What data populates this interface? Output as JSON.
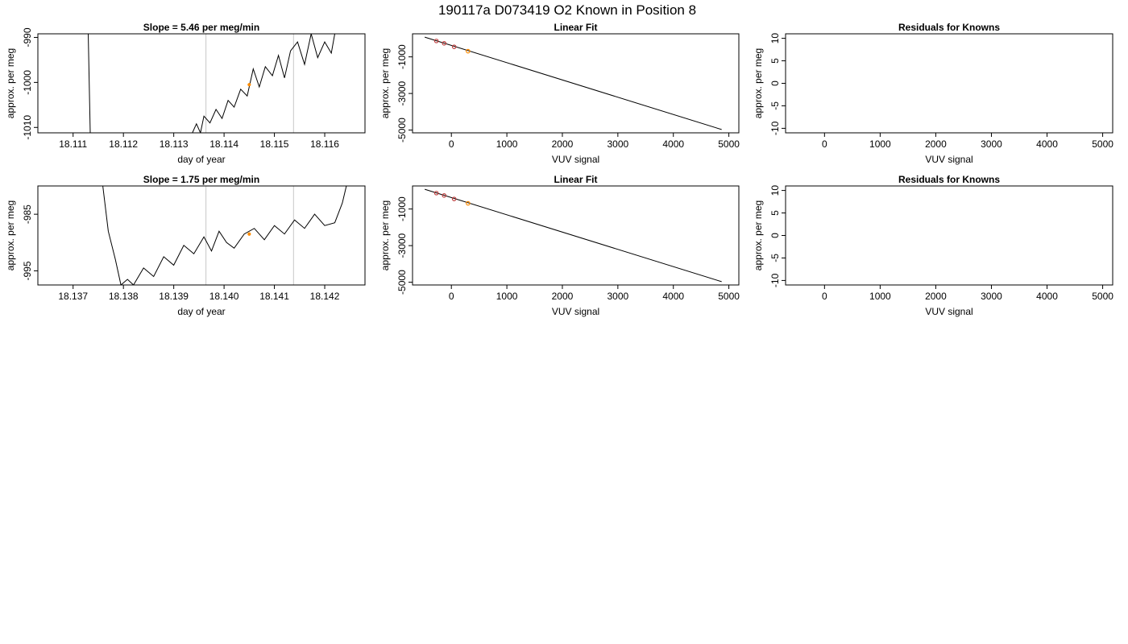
{
  "title": "190117a      D073419   O2 Known in Position  8",
  "chart_data": [
    {
      "type": "line",
      "title": "Slope =  5.46  per meg/min",
      "xlabel": "day of year",
      "ylabel": "approx. per meg",
      "xlim": [
        18.1103,
        18.1168
      ],
      "ylim": [
        -1011.2,
        -989.2
      ],
      "xticks": [
        "18.111",
        "18.112",
        "18.113",
        "18.114",
        "18.115",
        "18.116"
      ],
      "xtick_values": [
        18.111,
        18.112,
        18.113,
        18.114,
        18.115,
        18.116
      ],
      "yticks": [
        "-1010",
        "-1000",
        "-990"
      ],
      "ytick_values": [
        -1010,
        -1000,
        -990
      ],
      "vlines": [
        18.11364,
        18.11538
      ],
      "marker": {
        "x": 18.1145,
        "y": -1000.5,
        "color": "#ff8c00"
      },
      "series": [
        {
          "x": [
            18.1113,
            18.11134,
            18.11337,
            18.11345,
            18.11353,
            18.1136,
            18.11372,
            18.11384,
            18.11396,
            18.11408,
            18.1142,
            18.11433,
            18.11446,
            18.11458,
            18.1147,
            18.11482,
            18.11496,
            18.11508,
            18.1152,
            18.11532,
            18.11546,
            18.1156,
            18.11573,
            18.11586,
            18.116,
            18.11613,
            18.1162
          ],
          "y": [
            -989.2,
            -1011.2,
            -1011.2,
            -1009.2,
            -1011.2,
            -1007.5,
            -1009.0,
            -1006.0,
            -1008.0,
            -1004.0,
            -1005.5,
            -1001.5,
            -1003.0,
            -997.0,
            -1001.0,
            -996.5,
            -998.5,
            -994.0,
            -999.0,
            -993.0,
            -991.0,
            -996.0,
            -989.2,
            -994.5,
            -991.0,
            -993.5,
            -989.2
          ]
        }
      ]
    },
    {
      "type": "scatter",
      "title": "Linear Fit",
      "xlabel": "VUV signal",
      "ylabel": "approx. per meg",
      "xlim": [
        -700,
        5180
      ],
      "ylim": [
        -5150,
        260
      ],
      "xticks": [
        "0",
        "1000",
        "2000",
        "3000",
        "4000",
        "5000"
      ],
      "xtick_values": [
        0,
        1000,
        2000,
        3000,
        4000,
        5000
      ],
      "yticks": [
        "-5000",
        "-3000",
        "-1000"
      ],
      "ytick_values": [
        -5000,
        -3000,
        -1000
      ],
      "fit_line": {
        "x": [
          -480,
          4870
        ],
        "y": [
          80,
          -4970
        ]
      },
      "points": [
        {
          "x": -270,
          "y": -130,
          "color": "#c04040"
        },
        {
          "x": -130,
          "y": -260,
          "color": "#c04040"
        },
        {
          "x": 50,
          "y": -450,
          "color": "#c04040"
        },
        {
          "x": 300,
          "y": -690,
          "color": "#ff8c00"
        }
      ]
    },
    {
      "type": "scatter",
      "title": "Linear Fit",
      "xlabel": "VUV signal",
      "ylabel": "approx. per meg",
      "xlim": [
        -700,
        5180
      ],
      "ylim": [
        -5150,
        260
      ],
      "xticks": [
        "0",
        "1000",
        "2000",
        "3000",
        "4000",
        "5000"
      ],
      "xtick_values": [
        0,
        1000,
        2000,
        3000,
        4000,
        5000
      ],
      "yticks": [
        "-5000",
        "-3000",
        "-1000"
      ],
      "ytick_values": [
        -5000,
        -3000,
        -1000
      ],
      "fit_line": {
        "x": [
          -480,
          4870
        ],
        "y": [
          80,
          -4970
        ]
      },
      "points": [
        {
          "x": -270,
          "y": -130,
          "color": "#c04040"
        },
        {
          "x": -130,
          "y": -260,
          "color": "#c04040"
        },
        {
          "x": 50,
          "y": -450,
          "color": "#c04040"
        },
        {
          "x": 300,
          "y": -690,
          "color": "#ff8c00"
        }
      ]
    },
    {
      "type": "scatter",
      "title": "Residuals for Knowns",
      "xlabel": "VUV signal",
      "ylabel": "approx. per meg",
      "xlim": [
        -700,
        5180
      ],
      "ylim": [
        -11,
        11
      ],
      "xticks": [
        "0",
        "1000",
        "2000",
        "3000",
        "4000",
        "5000"
      ],
      "xtick_values": [
        0,
        1000,
        2000,
        3000,
        4000,
        5000
      ],
      "yticks": [
        "-10",
        "-5",
        "0",
        "5",
        "10"
      ],
      "ytick_values": [
        -10,
        -5,
        0,
        5,
        10
      ]
    },
    {
      "type": "line",
      "title": "Slope =  1.75  per meg/min",
      "xlabel": "day of year",
      "ylabel": "approx. per meg",
      "xlim": [
        18.1363,
        18.1428
      ],
      "ylim": [
        -997.5,
        -980.0
      ],
      "xticks": [
        "18.137",
        "18.138",
        "18.139",
        "18.140",
        "18.141",
        "18.142"
      ],
      "xtick_values": [
        18.137,
        18.138,
        18.139,
        18.14,
        18.141,
        18.142
      ],
      "yticks": [
        "-995",
        "-985"
      ],
      "ytick_values": [
        -995,
        -985
      ],
      "vlines": [
        18.13964,
        18.14138
      ],
      "marker": {
        "x": 18.1405,
        "y": -988.5,
        "color": "#ff8c00"
      },
      "series": [
        {
          "x": [
            18.13759,
            18.1377,
            18.13784,
            18.13795,
            18.13808,
            18.1382,
            18.1384,
            18.1386,
            18.1388,
            18.139,
            18.1392,
            18.1394,
            18.1396,
            18.13975,
            18.1399,
            18.14005,
            18.1402,
            18.1404,
            18.1406,
            18.1408,
            18.141,
            18.1412,
            18.1414,
            18.1416,
            18.1418,
            18.142,
            18.1422,
            18.14235,
            18.14243
          ],
          "y": [
            -980.0,
            -988.0,
            -993.0,
            -997.5,
            -996.5,
            -997.5,
            -994.5,
            -996.0,
            -992.5,
            -994.0,
            -990.5,
            -992.0,
            -989.0,
            -991.5,
            -988.0,
            -990.0,
            -991.0,
            -988.5,
            -987.5,
            -989.5,
            -987.0,
            -988.5,
            -986.0,
            -987.5,
            -985.0,
            -987.0,
            -986.5,
            -983.0,
            -980.0
          ]
        }
      ]
    },
    {
      "type": "scatter",
      "title": "Residuals for Knowns",
      "xlabel": "VUV signal",
      "ylabel": "approx. per meg",
      "xlim": [
        -700,
        5180
      ],
      "ylim": [
        -11,
        11
      ],
      "xticks": [
        "0",
        "1000",
        "2000",
        "3000",
        "4000",
        "5000"
      ],
      "xtick_values": [
        0,
        1000,
        2000,
        3000,
        4000,
        5000
      ],
      "yticks": [
        "-10",
        "-5",
        "0",
        "5",
        "10"
      ],
      "ytick_values": [
        -10,
        -5,
        0,
        5,
        10
      ]
    }
  ]
}
